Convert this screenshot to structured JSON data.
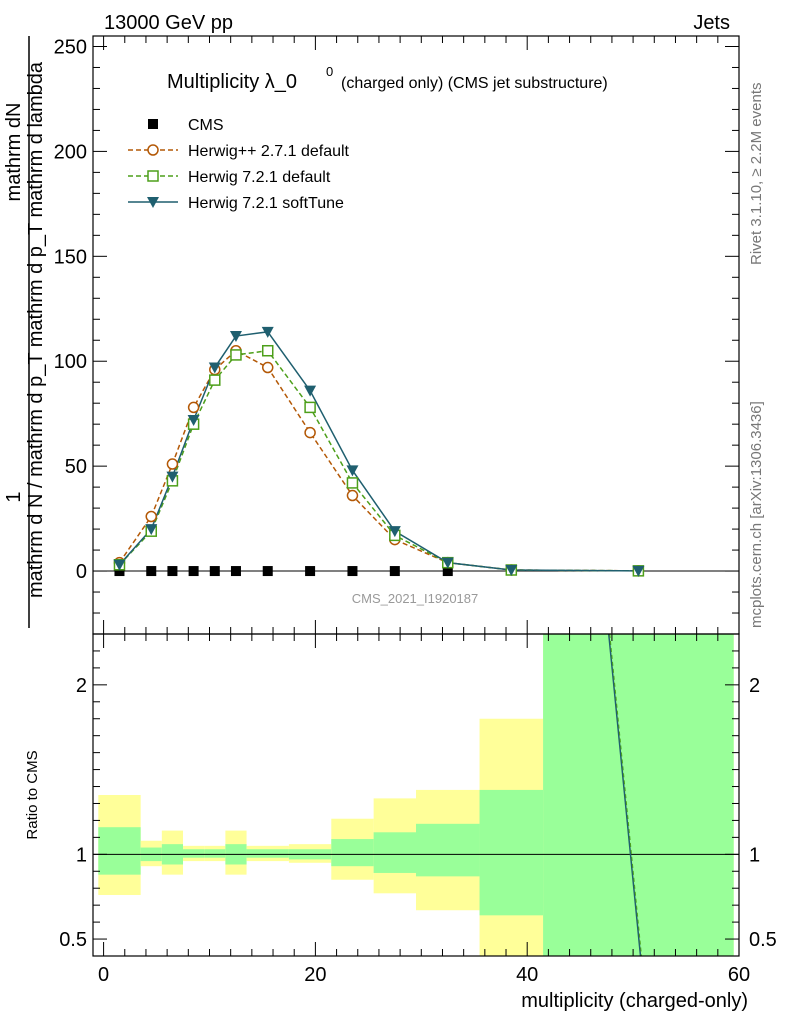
{
  "header": {
    "left": "13000 GeV pp",
    "right": "Jets"
  },
  "side": {
    "rivet": "Rivet 3.1.10, ≥ 2.2M events",
    "mcplots": "mcplots.cern.ch [arXiv:1306.3436]"
  },
  "watermark": "CMS_2021_I1920187",
  "chart_data": [
    {
      "type": "line",
      "title_main": "Multiplicity λ_0",
      "title_sup": "0",
      "title_sub": "(charged only) (CMS jet substructure)",
      "ylabel_top": "1",
      "ylabel_bottom": "mathrm d N / mathrm d p_T mathrm d p_T mathrm d lambda",
      "ylabel_num": "mathrm dN",
      "xlim": [
        -1,
        60
      ],
      "ylim": [
        -30,
        255
      ],
      "yticks": [
        0,
        50,
        100,
        150,
        200,
        250
      ],
      "ytick_labels": [
        "0",
        "50",
        "100",
        "150",
        "200",
        "250"
      ],
      "series": [
        {
          "name": "CMS",
          "color": "#000000",
          "marker": "square",
          "x": [
            1.5,
            4.5,
            6.5,
            8.5,
            10.5,
            12.5,
            15.5,
            19.5,
            23.5,
            27.5,
            32.5
          ],
          "y": [
            0,
            0,
            0,
            0,
            0,
            0,
            0,
            0,
            0,
            0,
            0
          ]
        },
        {
          "name": "Herwig++ 2.7.1 default",
          "color": "#b35806",
          "marker": "circle",
          "dashed": true,
          "x": [
            1.5,
            4.5,
            6.5,
            8.5,
            10.5,
            12.5,
            15.5,
            19.5,
            23.5,
            27.5,
            32.5,
            38.5,
            50.5
          ],
          "y": [
            4,
            26,
            51,
            78,
            96,
            105,
            97,
            66,
            36,
            15,
            4,
            0.5,
            0.1
          ]
        },
        {
          "name": "Herwig 7.2.1 default",
          "color": "#4d9f1a",
          "marker": "open-square",
          "dashed": true,
          "x": [
            1.5,
            4.5,
            6.5,
            8.5,
            10.5,
            12.5,
            15.5,
            19.5,
            23.5,
            27.5,
            32.5,
            38.5,
            50.5
          ],
          "y": [
            3,
            19,
            43,
            70,
            91,
            103,
            105,
            78,
            42,
            17,
            4,
            0.5,
            0.1
          ]
        },
        {
          "name": "Herwig 7.2.1 softTune",
          "color": "#1f5f6f",
          "marker": "triangle-down",
          "dashed": false,
          "x": [
            1.5,
            4.5,
            6.5,
            8.5,
            10.5,
            12.5,
            15.5,
            19.5,
            23.5,
            27.5,
            32.5,
            38.5,
            50.5
          ],
          "y": [
            3,
            20,
            45,
            72,
            97,
            112,
            114,
            86,
            48,
            19,
            4,
            0.5,
            0.1
          ]
        }
      ]
    },
    {
      "type": "line",
      "ylabel": "Ratio to CMS",
      "xlabel": "multiplicity (charged-only)",
      "xlim": [
        -1,
        60
      ],
      "ylim": [
        0.4,
        2.3
      ],
      "xticks": [
        0,
        20,
        40,
        60
      ],
      "xtick_labels": [
        "0",
        "20",
        "40",
        "60"
      ],
      "yticks": [
        0.5,
        1,
        2
      ],
      "ytick_labels": [
        "0.5",
        "1",
        "2"
      ],
      "bands": [
        {
          "x0": -0.5,
          "x1": 3.5,
          "y_lo": 0.76,
          "y_hi": 1.35,
          "g_lo": 0.88,
          "g_hi": 1.16
        },
        {
          "x0": 3.5,
          "x1": 5.5,
          "y_lo": 0.93,
          "y_hi": 1.08,
          "g_lo": 0.96,
          "g_hi": 1.04
        },
        {
          "x0": 5.5,
          "x1": 7.5,
          "y_lo": 0.88,
          "y_hi": 1.14,
          "g_lo": 0.94,
          "g_hi": 1.06
        },
        {
          "x0": 7.5,
          "x1": 9.5,
          "y_lo": 0.96,
          "y_hi": 1.05,
          "g_lo": 0.98,
          "g_hi": 1.03
        },
        {
          "x0": 9.5,
          "x1": 11.5,
          "y_lo": 0.96,
          "y_hi": 1.05,
          "g_lo": 0.98,
          "g_hi": 1.03
        },
        {
          "x0": 11.5,
          "x1": 13.5,
          "y_lo": 0.88,
          "y_hi": 1.14,
          "g_lo": 0.94,
          "g_hi": 1.06
        },
        {
          "x0": 13.5,
          "x1": 17.5,
          "y_lo": 0.96,
          "y_hi": 1.05,
          "g_lo": 0.98,
          "g_hi": 1.03
        },
        {
          "x0": 17.5,
          "x1": 21.5,
          "y_lo": 0.95,
          "y_hi": 1.06,
          "g_lo": 0.97,
          "g_hi": 1.03
        },
        {
          "x0": 21.5,
          "x1": 25.5,
          "y_lo": 0.85,
          "y_hi": 1.21,
          "g_lo": 0.93,
          "g_hi": 1.09
        },
        {
          "x0": 25.5,
          "x1": 29.5,
          "y_lo": 0.77,
          "y_hi": 1.33,
          "g_lo": 0.89,
          "g_hi": 1.13
        },
        {
          "x0": 29.5,
          "x1": 35.5,
          "y_lo": 0.67,
          "y_hi": 1.38,
          "g_lo": 0.87,
          "g_hi": 1.18
        },
        {
          "x0": 35.5,
          "x1": 41.5,
          "y_lo": 0.4,
          "y_hi": 1.8,
          "g_lo": 0.64,
          "g_hi": 1.38
        },
        {
          "x0": 41.5,
          "x1": 59.5,
          "y_lo": 0.4,
          "y_hi": 2.3,
          "g_lo": 0.4,
          "g_hi": 2.3
        }
      ],
      "ratio_line": {
        "x": [
          47.7,
          50.7
        ],
        "y": [
          2.3,
          0.4
        ],
        "color": "#1f5f6f"
      }
    }
  ]
}
